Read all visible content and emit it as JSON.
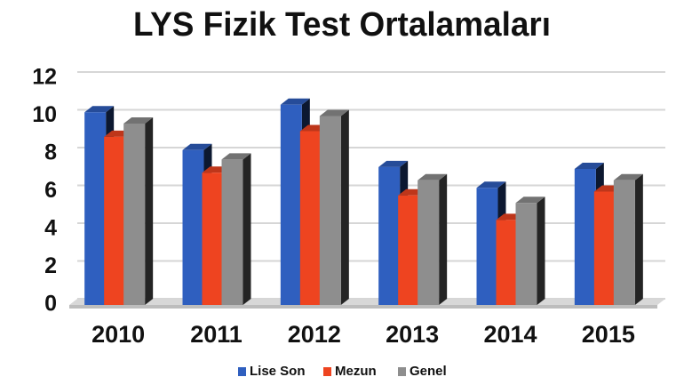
{
  "chart_data": {
    "type": "bar",
    "title": "LYS Fizik Test Ortalamaları",
    "categories": [
      "2010",
      "2011",
      "2012",
      "2013",
      "2014",
      "2015"
    ],
    "series": [
      {
        "name": "Lise Son",
        "color": "#2f5fbf",
        "values": [
          10.2,
          8.2,
          10.6,
          7.3,
          6.2,
          7.2
        ]
      },
      {
        "name": "Mezun",
        "color": "#ee4420",
        "values": [
          8.9,
          7.0,
          9.2,
          5.8,
          4.5,
          6.0
        ]
      },
      {
        "name": "Genel",
        "color": "#8e8e8e",
        "values": [
          9.6,
          7.7,
          10.0,
          6.6,
          5.4,
          6.6
        ]
      }
    ],
    "ylim": [
      0,
      12
    ],
    "yticks": [
      0,
      2,
      4,
      6,
      8,
      10,
      12
    ],
    "grid": true,
    "legend": "bottom"
  }
}
